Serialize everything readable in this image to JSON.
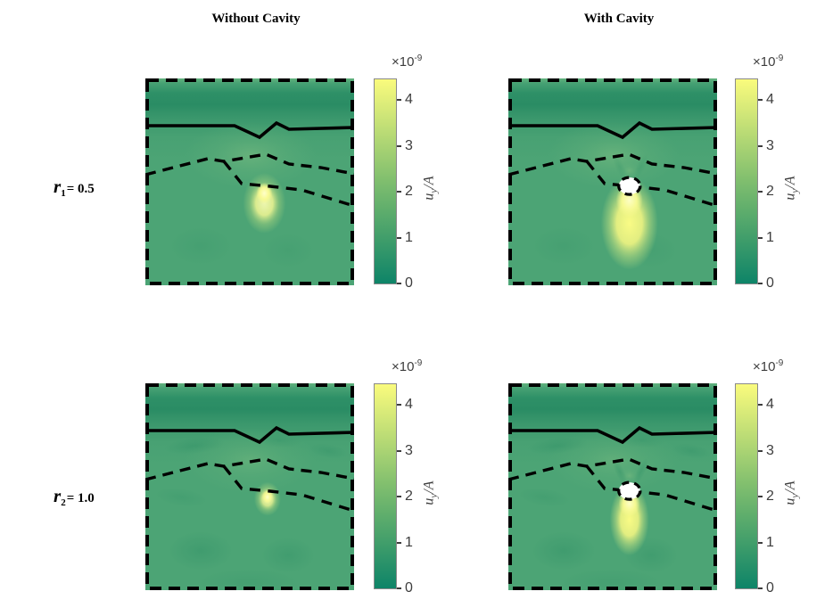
{
  "figure": {
    "background": "#ffffff",
    "col_titles": [
      "Without Cavity",
      "With Cavity"
    ],
    "row_labels": [
      {
        "symbol": "r",
        "sub": "1",
        "value": "= 0.5"
      },
      {
        "symbol": "r",
        "sub": "2",
        "value": "= 1.0"
      }
    ],
    "colorbar": {
      "exp_mantissa": "×10",
      "exp_power": "-9",
      "tick_labels_top_to_bottom": [
        "4",
        "3",
        "2",
        "1",
        "0"
      ],
      "axis_label": {
        "var": "u",
        "sub": "y",
        "slash": "/",
        "denom": "A"
      },
      "gradient": {
        "low": "#0E8468",
        "mid": "#7FBE6E",
        "high": "#FAFB7D"
      }
    }
  },
  "chart_data": {
    "type": "heatmap",
    "title": "",
    "grid": {
      "rows": 2,
      "cols": 2
    },
    "row_labels": [
      "r1 = 0.5",
      "r2 = 1.0"
    ],
    "col_labels": [
      "Without Cavity",
      "With Cavity"
    ],
    "value_label": "u_y / A",
    "value_scale": 1e-09,
    "colorbar": {
      "min": 0,
      "max": 4.5,
      "ticks": [
        0,
        1,
        2,
        3,
        4
      ],
      "exponent_text": "×10^-9",
      "colormap": "summer (dark teal-green at 0 to pale yellow at max)"
    },
    "interfaces": {
      "solid_line": "irregular solid black layer boundary at ~23% depth with a notch near x=60%",
      "dashed_upper": "dashed black boundary rising from left edge at ~46% depth to a ridge near x=58%",
      "dashed_lower": "dashed black boundary branching downward from the ridge, exiting right edge at ~62% depth",
      "border": "thick dashed black frame around each panel"
    },
    "panels": [
      {
        "row": "r1 = 0.5",
        "col": "Without Cavity",
        "row_index": 0,
        "cavity": false,
        "hotspot": {
          "x_frac": 0.57,
          "y_frac": 0.56,
          "peak_approx": 4.5
        },
        "ripple_intensity": 0.2,
        "description": "bright localized spot on lower dashed boundary, smooth green field"
      },
      {
        "row": "r1 = 0.5",
        "col": "With Cavity",
        "row_index": 0,
        "cavity": true,
        "cavity_center": {
          "x_frac": 0.58,
          "y_frac": 0.52
        },
        "hotspot": {
          "x_frac": 0.58,
          "y_frac": 0.7,
          "peak_approx": 4.5
        },
        "ripple_intensity": 0.2,
        "description": "white circular cavity with large bright yellow plume beneath it"
      },
      {
        "row": "r2 = 1.0",
        "col": "Without Cavity",
        "row_index": 1,
        "cavity": false,
        "hotspot": {
          "x_frac": 0.585,
          "y_frac": 0.55,
          "peak_approx": 4.0
        },
        "ripple_intensity": 0.5,
        "description": "smaller dimmer spot, stronger wave ripples and dark lobes below"
      },
      {
        "row": "r2 = 1.0",
        "col": "With Cavity",
        "row_index": 1,
        "cavity": true,
        "cavity_center": {
          "x_frac": 0.58,
          "y_frac": 0.52
        },
        "hotspot": {
          "x_frac": 0.58,
          "y_frac": 0.66,
          "peak_approx": 4.5
        },
        "ripple_intensity": 0.5,
        "description": "white cavity with narrow bright plume below and dark radiating lobes"
      }
    ]
  }
}
